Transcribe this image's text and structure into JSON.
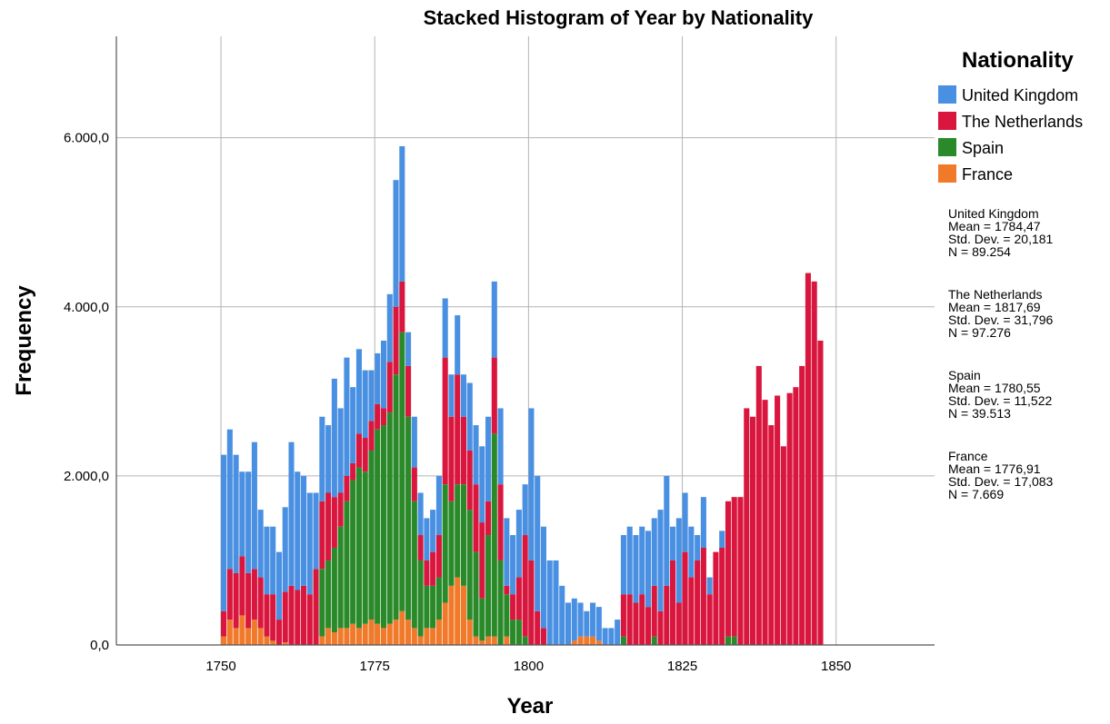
{
  "chart_data": {
    "type": "bar",
    "stacked": true,
    "title": "Stacked Histogram of Year by Nationality",
    "xlabel": "Year",
    "ylabel": "Frequency",
    "xlim": [
      1733,
      1866
    ],
    "ylim": [
      0,
      7200
    ],
    "grid": true,
    "x_ticks": [
      1750,
      1775,
      1800,
      1825,
      1850
    ],
    "x_tick_labels": [
      "1750",
      "1775",
      "1800",
      "1825",
      "1850"
    ],
    "y_ticks": [
      0,
      2000,
      4000,
      6000
    ],
    "y_tick_labels": [
      "0,0",
      "2.000,0",
      "4.000,0",
      "6.000,0"
    ],
    "legend": {
      "title": "Nationality",
      "position": "top-right",
      "entries": [
        {
          "label": "United Kingdom",
          "color": "#4a90e2"
        },
        {
          "label": "The Netherlands",
          "color": "#d9163d"
        },
        {
          "label": "Spain",
          "color": "#2a8a2a"
        },
        {
          "label": "France",
          "color": "#f07a2a"
        }
      ]
    },
    "bins_start": 1750,
    "bin_width": 1,
    "series": [
      {
        "name": "France",
        "color": "#f07a2a",
        "values": [
          100,
          300,
          200,
          350,
          200,
          300,
          200,
          100,
          50,
          0,
          30,
          0,
          0,
          0,
          0,
          0,
          100,
          200,
          150,
          200,
          200,
          250,
          200,
          250,
          300,
          250,
          200,
          250,
          300,
          400,
          300,
          200,
          100,
          200,
          200,
          300,
          500,
          700,
          800,
          700,
          300,
          100,
          50,
          100,
          100,
          0,
          100,
          0,
          0,
          0,
          0,
          0,
          0,
          0,
          0,
          0,
          0,
          50,
          100,
          100,
          100,
          50,
          0,
          0,
          0,
          0,
          0,
          0,
          0,
          0,
          0,
          0,
          0,
          0,
          0,
          0,
          0,
          0,
          0,
          0,
          0,
          0,
          0,
          0,
          0,
          0,
          0,
          0,
          0,
          0,
          0,
          0,
          0,
          0,
          0,
          0,
          0,
          0,
          0,
          0,
          0
        ]
      },
      {
        "name": "Spain",
        "color": "#2a8a2a",
        "values": [
          0,
          0,
          0,
          0,
          0,
          0,
          0,
          0,
          0,
          0,
          0,
          0,
          0,
          0,
          0,
          0,
          800,
          800,
          1000,
          1200,
          1500,
          1700,
          1900,
          1800,
          2000,
          2300,
          2400,
          2500,
          2900,
          3300,
          2400,
          1500,
          900,
          500,
          500,
          500,
          1400,
          1000,
          1100,
          1200,
          1300,
          1000,
          500,
          1200,
          2400,
          1000,
          500,
          300,
          300,
          100,
          0,
          0,
          0,
          0,
          0,
          0,
          0,
          0,
          0,
          0,
          0,
          0,
          0,
          0,
          0,
          100,
          0,
          0,
          0,
          0,
          100,
          0,
          0,
          0,
          0,
          0,
          0,
          0,
          0,
          0,
          0,
          0,
          100,
          100,
          0,
          0,
          0,
          0,
          0,
          0,
          0,
          0,
          0,
          0,
          0,
          0,
          0,
          0,
          0,
          0,
          0
        ]
      },
      {
        "name": "The Netherlands",
        "color": "#d9163d",
        "values": [
          300,
          600,
          650,
          700,
          650,
          600,
          600,
          500,
          550,
          300,
          600,
          700,
          650,
          700,
          600,
          900,
          800,
          800,
          600,
          400,
          300,
          200,
          400,
          400,
          350,
          300,
          200,
          600,
          800,
          600,
          600,
          400,
          300,
          300,
          400,
          500,
          1500,
          1000,
          1300,
          800,
          700,
          800,
          900,
          400,
          900,
          900,
          100,
          300,
          500,
          1200,
          1000,
          400,
          200,
          0,
          0,
          0,
          0,
          0,
          0,
          0,
          0,
          0,
          0,
          0,
          0,
          500,
          600,
          500,
          600,
          450,
          600,
          400,
          700,
          1000,
          500,
          1100,
          800,
          1000,
          1150,
          600,
          1100,
          1150,
          1600,
          1650,
          1750,
          2800,
          2700,
          3300,
          2900,
          2600,
          2950,
          2350,
          2980,
          3050,
          3300,
          4400,
          4300,
          3600,
          0,
          0,
          0
        ]
      },
      {
        "name": "United Kingdom",
        "color": "#4a90e2",
        "values": [
          1850,
          1650,
          1400,
          1000,
          1200,
          1500,
          800,
          800,
          800,
          800,
          1000,
          1700,
          1400,
          1300,
          1200,
          900,
          1000,
          800,
          1400,
          1000,
          1400,
          900,
          1000,
          800,
          600,
          600,
          800,
          800,
          1500,
          1600,
          400,
          600,
          500,
          500,
          500,
          700,
          700,
          500,
          700,
          500,
          800,
          700,
          900,
          1000,
          900,
          900,
          800,
          700,
          800,
          600,
          1800,
          1600,
          1200,
          1000,
          1000,
          700,
          500,
          500,
          400,
          300,
          400,
          400,
          200,
          200,
          300,
          700,
          800,
          800,
          800,
          900,
          800,
          1200,
          1300,
          400,
          1000,
          700,
          600,
          300,
          600,
          200,
          0,
          200,
          0,
          0,
          0,
          0,
          0,
          0,
          0,
          0,
          0,
          0,
          0,
          0,
          0,
          0,
          0,
          0,
          0,
          0,
          0
        ]
      }
    ],
    "annotations": [
      {
        "group": "United Kingdom",
        "lines": [
          "United Kingdom",
          "Mean = 1784,47",
          "Std. Dev. = 20,181",
          "N = 89.254"
        ]
      },
      {
        "group": "The Netherlands",
        "lines": [
          "The Netherlands",
          "Mean = 1817,69",
          "Std. Dev. = 31,796",
          "N = 97.276"
        ]
      },
      {
        "group": "Spain",
        "lines": [
          "Spain",
          "Mean = 1780,55",
          "Std. Dev. = 11,522",
          "N = 39.513"
        ]
      },
      {
        "group": "France",
        "lines": [
          "France",
          "Mean = 1776,91",
          "Std. Dev. = 17,083",
          "N = 7.669"
        ]
      }
    ]
  }
}
